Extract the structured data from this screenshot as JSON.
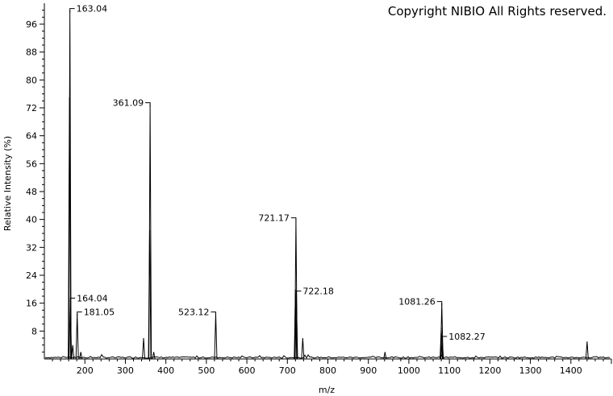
{
  "copyright": "Copyright NIBIO All Rights reserved.",
  "chart_data": {
    "type": "bar",
    "title": "",
    "xlabel": "m/z",
    "ylabel": "Relative Intensity (%)",
    "xlim": [
      100,
      1500
    ],
    "ylim": [
      0,
      102
    ],
    "x_ticks": [
      "200",
      "300",
      "400",
      "500",
      "600",
      "700",
      "800",
      "900",
      "1000",
      "1100",
      "1200",
      "1300",
      "1400"
    ],
    "y_ticks": [
      "8",
      "16",
      "24",
      "32",
      "40",
      "48",
      "56",
      "64",
      "72",
      "80",
      "88",
      "96"
    ],
    "x_tick_values": [
      200,
      300,
      400,
      500,
      600,
      700,
      800,
      900,
      1000,
      1100,
      1200,
      1300,
      1400
    ],
    "y_tick_values": [
      8,
      16,
      24,
      32,
      40,
      48,
      56,
      64,
      72,
      80,
      88,
      96
    ],
    "grid": false,
    "series": [
      {
        "values": [
          {
            "x": 162.0,
            "y": 75
          },
          {
            "x": 163.04,
            "y": 100
          },
          {
            "x": 164.04,
            "y": 17
          },
          {
            "x": 170,
            "y": 4
          },
          {
            "x": 181.05,
            "y": 13
          },
          {
            "x": 190,
            "y": 2
          },
          {
            "x": 345,
            "y": 6
          },
          {
            "x": 360.0,
            "y": 37
          },
          {
            "x": 361.09,
            "y": 73
          },
          {
            "x": 370,
            "y": 2
          },
          {
            "x": 523.12,
            "y": 13
          },
          {
            "x": 720.0,
            "y": 20
          },
          {
            "x": 721.17,
            "y": 40
          },
          {
            "x": 722.18,
            "y": 19
          },
          {
            "x": 738,
            "y": 6
          },
          {
            "x": 941,
            "y": 2
          },
          {
            "x": 1080.0,
            "y": 9
          },
          {
            "x": 1081.26,
            "y": 16
          },
          {
            "x": 1082.27,
            "y": 6
          },
          {
            "x": 1440,
            "y": 5
          }
        ]
      }
    ],
    "annotations": [
      {
        "text": "163.04",
        "x": 163.04,
        "y": 100
      },
      {
        "text": "164.04",
        "x": 164.04,
        "y": 17
      },
      {
        "text": "181.05",
        "x": 181.05,
        "y": 13
      },
      {
        "text": "361.09",
        "x": 361.09,
        "y": 73
      },
      {
        "text": "523.12",
        "x": 523.12,
        "y": 13
      },
      {
        "text": "721.17",
        "x": 721.17,
        "y": 40
      },
      {
        "text": "722.18",
        "x": 722.18,
        "y": 19
      },
      {
        "text": "1081.26",
        "x": 1081.26,
        "y": 16
      },
      {
        "text": "1082.27",
        "x": 1082.27,
        "y": 6
      }
    ]
  }
}
